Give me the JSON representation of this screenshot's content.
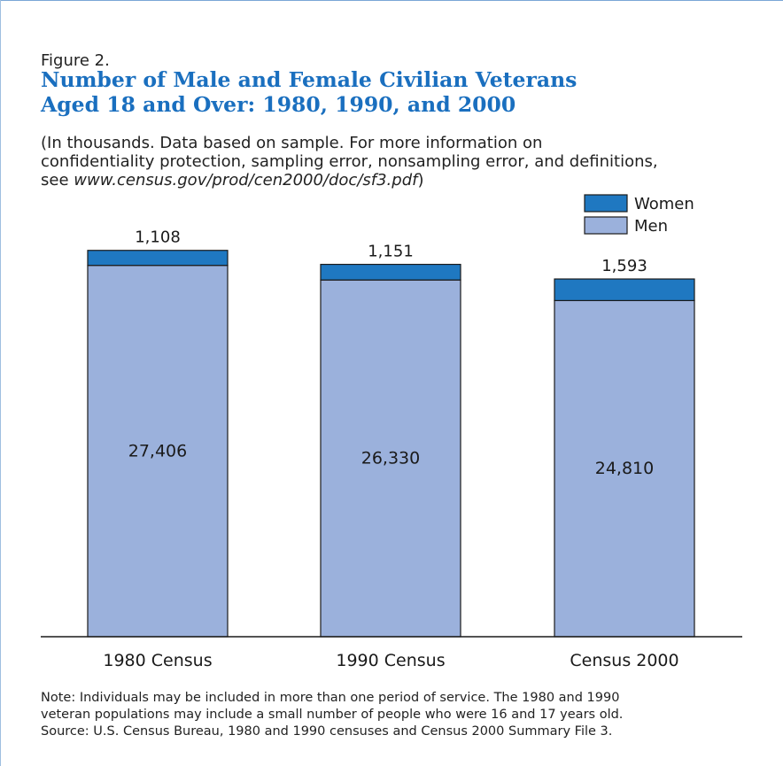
{
  "figure": {
    "label": "Figure 2.",
    "title_line1": "Number of Male and Female Civilian Veterans",
    "title_line2": "Aged 18 and Over: 1980, 1990, and 2000",
    "subtitle_line1": "(In thousands.  Data based on sample.  For more information on",
    "subtitle_line2": "confidentiality protection, sampling error, nonsampling error, and definitions,",
    "subtitle_line3_prefix": "see ",
    "subtitle_line3_url": "www.census.gov/prod/cen2000/doc/sf3.pdf",
    "subtitle_line3_suffix": ")",
    "note_line1": "Note: Individuals may be included in more than one period of service.  The 1980 and 1990",
    "note_line2": "veteran populations may include a small number of people who were 16 and 17 years old.",
    "note_line3": "Source: U.S. Census Bureau, 1980 and 1990 censuses and Census 2000 Summary File 3."
  },
  "colors": {
    "women": "#1f78c1",
    "men": "#9bb1dc",
    "outline": "#1a1a1a",
    "title": "#1a6fbf"
  },
  "chart_data": {
    "type": "bar",
    "stacked": true,
    "categories": [
      "1980 Census",
      "1990 Census",
      "Census 2000"
    ],
    "series": [
      {
        "name": "Men",
        "values": [
          27406,
          26330,
          24810
        ]
      },
      {
        "name": "Women",
        "values": [
          1108,
          1151,
          1593
        ]
      }
    ],
    "data_labels": {
      "Men": [
        "27,406",
        "26,330",
        "24,810"
      ],
      "Women": [
        "1,108",
        "1,151",
        "1,593"
      ]
    },
    "legend": [
      "Women",
      "Men"
    ],
    "legend_position": "top-right",
    "ylim": [
      0,
      30000
    ],
    "grid": false,
    "xlabel": "",
    "ylabel": ""
  }
}
